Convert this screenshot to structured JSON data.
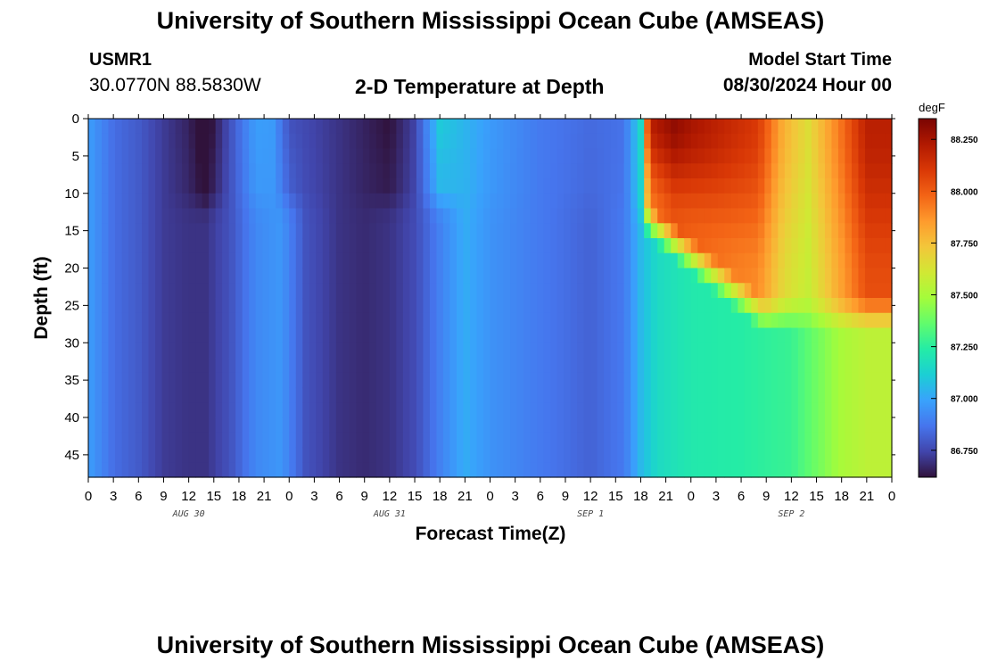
{
  "header": {
    "title": "University of Southern Mississippi Ocean Cube (AMSEAS)",
    "station_id": "USMR1",
    "station_coords": "30.0770N  88.5830W",
    "plot_title": "2-D Temperature at Depth",
    "model_start_label": "Model Start Time",
    "model_start_value": "08/30/2024 Hour 00"
  },
  "footer": {
    "title": "University of Southern Mississippi Ocean Cube (AMSEAS)"
  },
  "chart_data": {
    "type": "heatmap",
    "xlabel": "Forecast Time(Z)",
    "ylabel": "Depth (ft)",
    "x_hours_range": [
      0,
      96
    ],
    "x_tick_labels": [
      "0",
      "3",
      "6",
      "9",
      "12",
      "15",
      "18",
      "21",
      "0",
      "3",
      "6",
      "9",
      "12",
      "15",
      "18",
      "21",
      "0",
      "3",
      "6",
      "9",
      "12",
      "15",
      "18",
      "21",
      "0",
      "3",
      "6",
      "9",
      "12",
      "15",
      "18",
      "21",
      "0"
    ],
    "date_labels": [
      "AUG 30",
      "AUG 31",
      "SEP 1",
      "SEP 2"
    ],
    "y_range": [
      0,
      48
    ],
    "y_ticks": [
      0,
      5,
      10,
      15,
      20,
      25,
      30,
      35,
      40,
      45
    ],
    "colorbar": {
      "unit": "degF",
      "range": [
        86.62,
        88.35
      ],
      "tick_values": [
        86.75,
        87.0,
        87.25,
        87.5,
        87.75,
        88.0,
        88.25
      ],
      "tick_labels": [
        "86.750",
        "87.000",
        "87.250",
        "87.500",
        "87.750",
        "88.000",
        "88.250"
      ],
      "colors": [
        "#30123b",
        "#4145ab",
        "#4675ed",
        "#39a2fc",
        "#1bcfd4",
        "#24eca6",
        "#61fc6c",
        "#a4fc3b",
        "#d1e834",
        "#f3c63a",
        "#fe9b2d",
        "#f36315",
        "#d93806",
        "#b11901",
        "#7a0402"
      ]
    },
    "surface_temps_by_hour": [
      [
        0,
        86.98
      ],
      [
        3,
        86.85
      ],
      [
        6,
        86.8
      ],
      [
        9,
        86.72
      ],
      [
        12,
        86.66
      ],
      [
        14,
        86.57
      ],
      [
        17,
        86.78
      ],
      [
        20,
        86.98
      ],
      [
        22,
        86.97
      ],
      [
        24,
        86.78
      ],
      [
        30,
        86.7
      ],
      [
        33,
        86.66
      ],
      [
        36,
        86.62
      ],
      [
        39,
        86.74
      ],
      [
        42,
        87.1
      ],
      [
        45,
        87.04
      ],
      [
        48,
        86.97
      ],
      [
        54,
        86.88
      ],
      [
        60,
        86.84
      ],
      [
        64,
        86.86
      ],
      [
        65,
        87.0
      ],
      [
        66,
        87.15
      ],
      [
        67,
        88.2
      ],
      [
        70,
        88.3
      ],
      [
        72,
        88.25
      ],
      [
        80,
        88.1
      ],
      [
        83,
        87.8
      ],
      [
        86,
        87.65
      ],
      [
        90,
        87.95
      ],
      [
        93,
        88.2
      ],
      [
        96,
        88.2
      ]
    ],
    "deep_temps_by_hour": [
      [
        0,
        86.98
      ],
      [
        3,
        86.85
      ],
      [
        6,
        86.8
      ],
      [
        9,
        86.72
      ],
      [
        12,
        86.7
      ],
      [
        14,
        86.7
      ],
      [
        17,
        86.78
      ],
      [
        20,
        86.92
      ],
      [
        23,
        86.96
      ],
      [
        26,
        86.78
      ],
      [
        30,
        86.7
      ],
      [
        33,
        86.68
      ],
      [
        36,
        86.7
      ],
      [
        39,
        86.76
      ],
      [
        42,
        86.9
      ],
      [
        45,
        87.02
      ],
      [
        48,
        86.95
      ],
      [
        54,
        86.88
      ],
      [
        60,
        86.82
      ],
      [
        64,
        86.88
      ],
      [
        66,
        87.05
      ],
      [
        68,
        87.16
      ],
      [
        72,
        87.22
      ],
      [
        78,
        87.24
      ],
      [
        84,
        87.28
      ],
      [
        86,
        87.35
      ],
      [
        90,
        87.5
      ],
      [
        93,
        87.55
      ],
      [
        96,
        87.55
      ]
    ]
  }
}
